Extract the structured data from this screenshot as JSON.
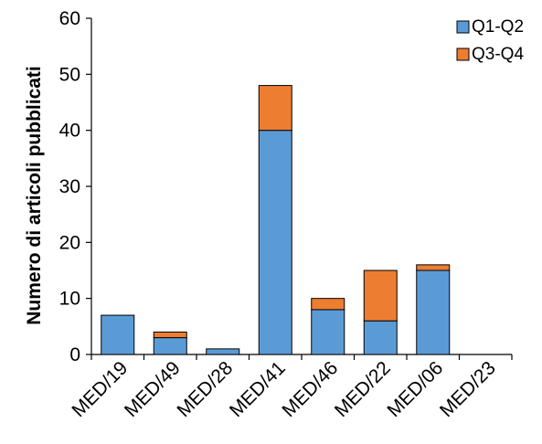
{
  "chart_data": {
    "type": "bar",
    "stacked": true,
    "title": "",
    "xlabel": "",
    "ylabel": "Numero di articoli pubblicati",
    "ylim": [
      0,
      60
    ],
    "yticks": [
      0,
      10,
      20,
      30,
      40,
      50,
      60
    ],
    "grid": false,
    "legend_position": "top-right",
    "categories": [
      "MED/19",
      "MED/49",
      "MED/28",
      "MED/41",
      "MED/46",
      "MED/22",
      "MED/06",
      "MED/23"
    ],
    "series": [
      {
        "name": "Q1-Q2",
        "color": "#5b9bd5",
        "values": [
          7,
          3,
          1,
          40,
          8,
          6,
          15,
          0
        ]
      },
      {
        "name": "Q3-Q4",
        "color": "#ed7d31",
        "values": [
          0,
          1,
          0,
          8,
          2,
          9,
          1,
          0
        ]
      }
    ]
  }
}
